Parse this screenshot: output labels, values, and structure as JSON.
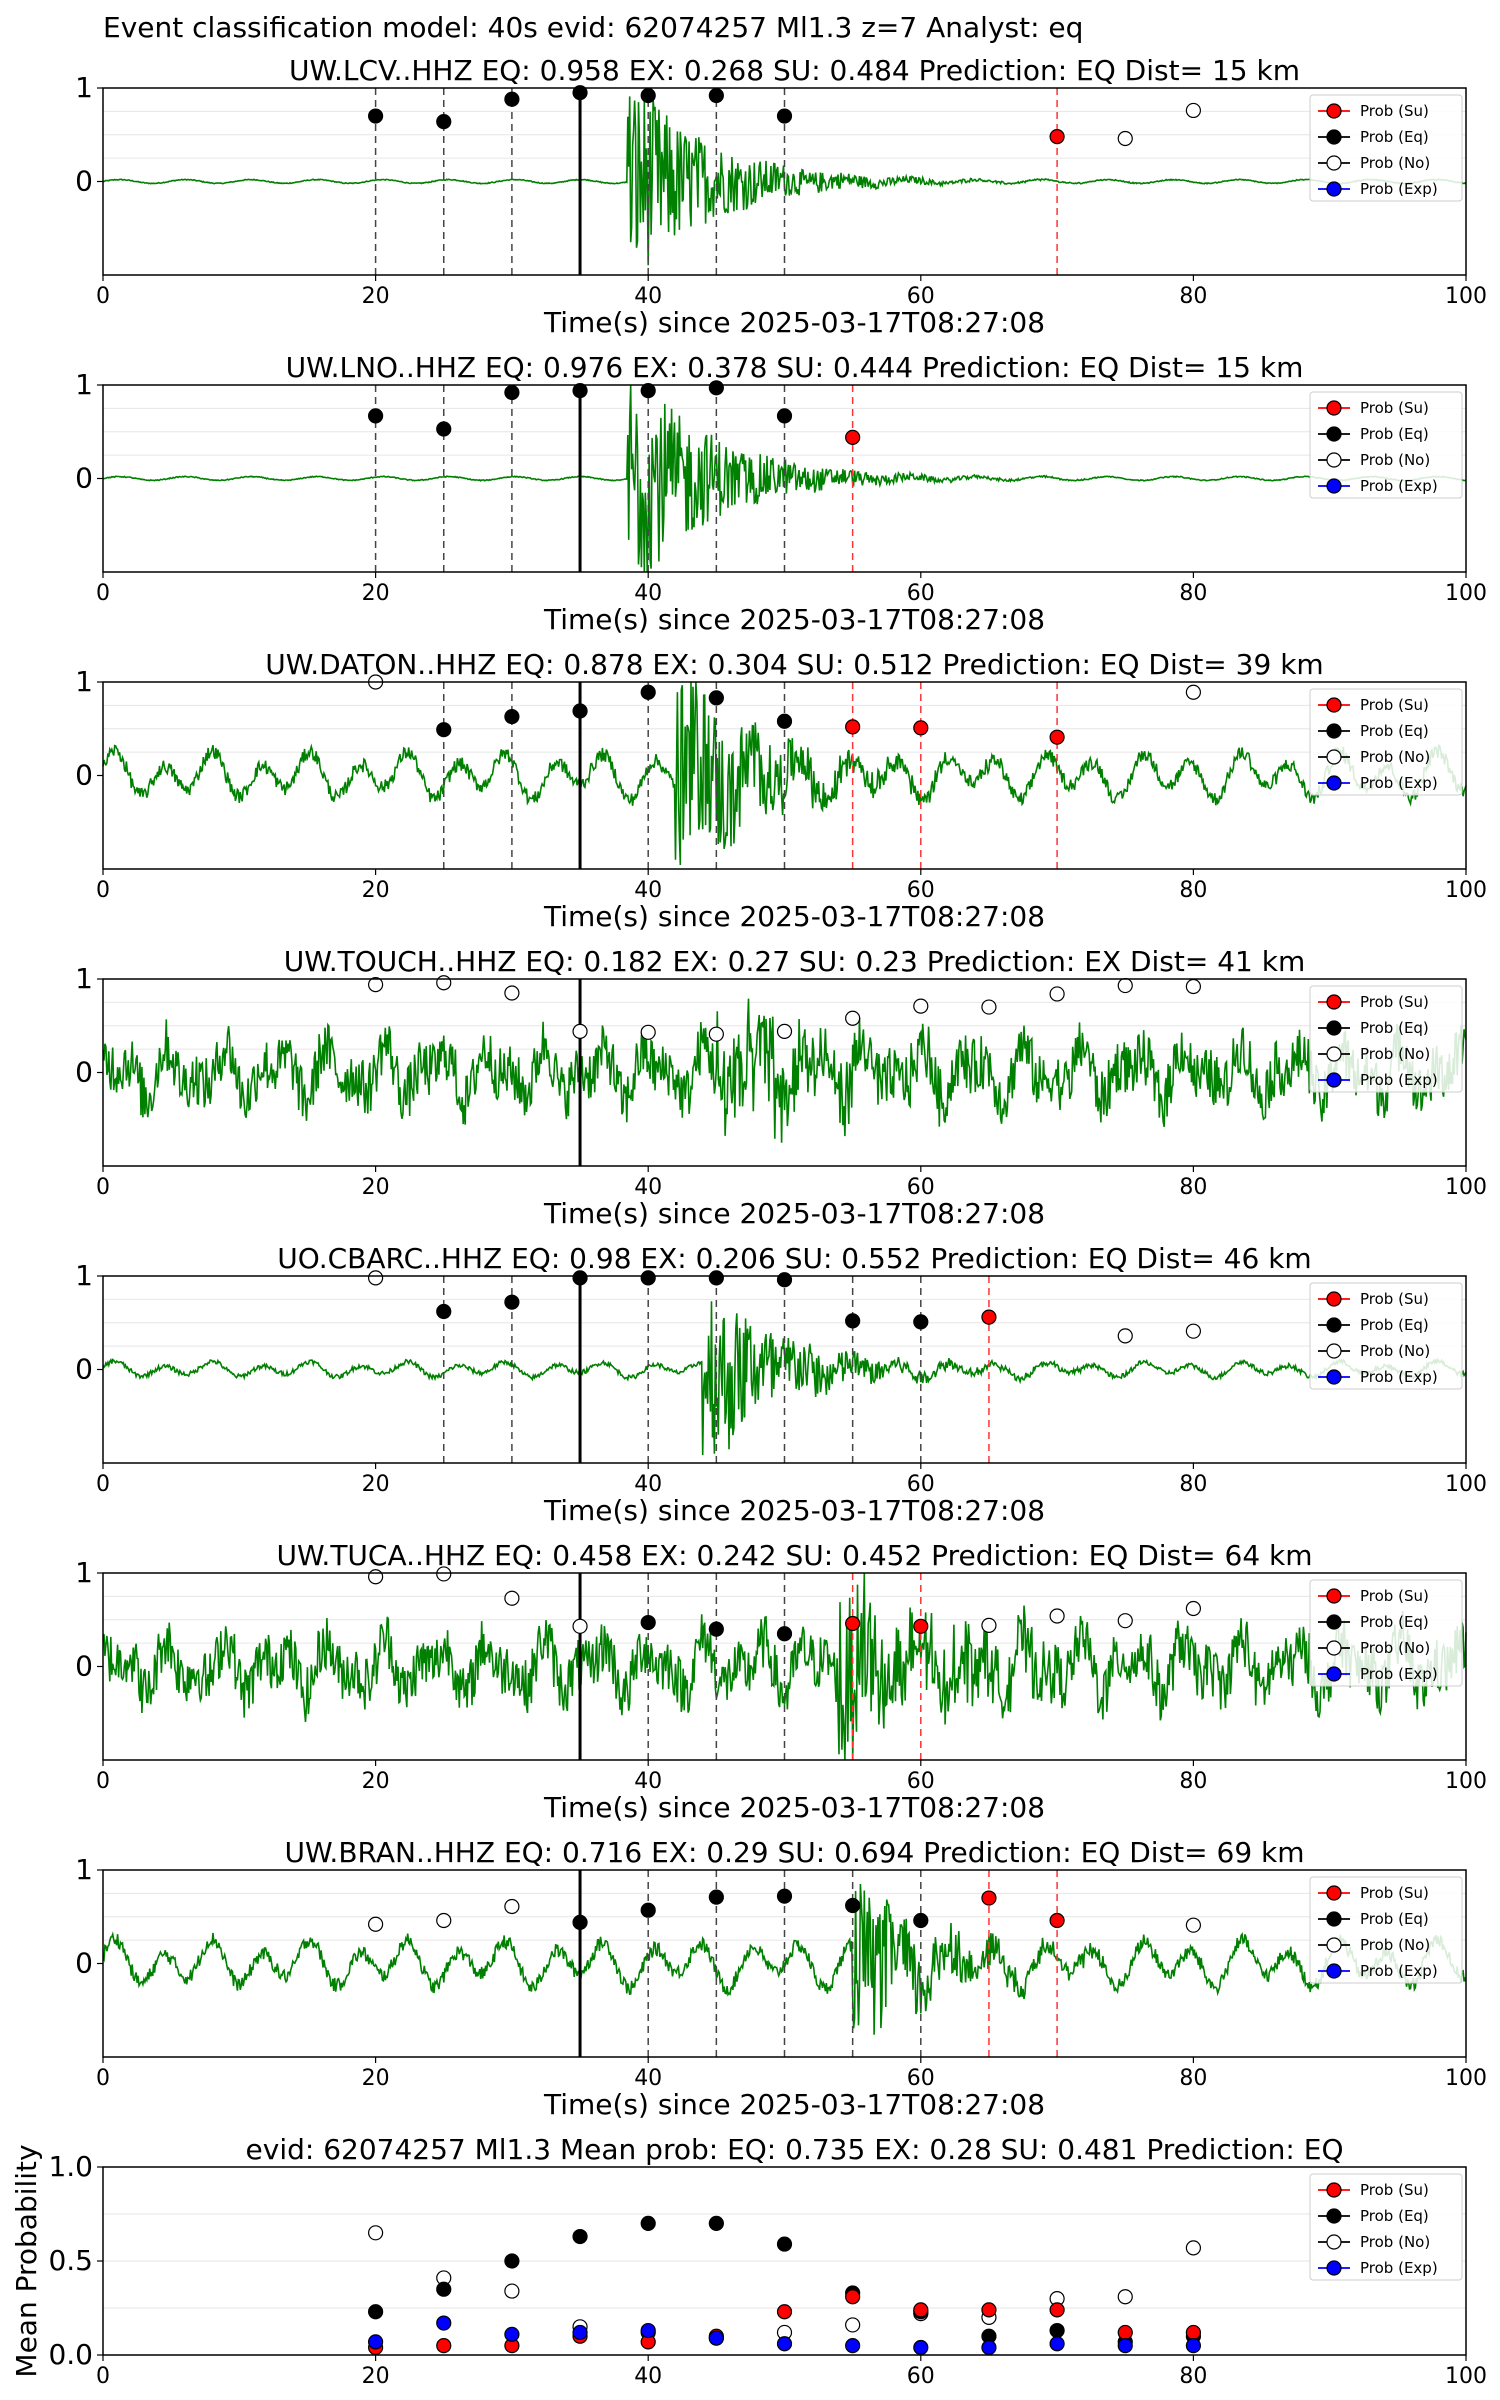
{
  "figure": {
    "suptitle": "Event classification model: 40s evid: 62074257 Ml1.3 z=7 Analyst: eq"
  },
  "legend_labels": [
    "Prob (Su)",
    "Prob (Eq)",
    "Prob (No)",
    "Prob (Exp)"
  ],
  "colors": {
    "waveform": "#008000",
    "eq": "#000000",
    "su": "#ff0000",
    "no": "#ffffff",
    "exp": "#0000ff",
    "dashed_black": "#444444",
    "dashed_red": "#ff3333",
    "origin_line": "#000000"
  },
  "chart_data": [
    {
      "type": "line",
      "title": "UW.LCV..HHZ   EQ: 0.958  EX: 0.268  SU: 0.484   Prediction: EQ    Dist= 15 km",
      "xlabel": "Time(s) since 2025-03-17T08:27:08",
      "xlim": [
        0,
        100
      ],
      "ylim": [
        -1,
        1
      ],
      "xticks": [
        "0",
        "20",
        "40",
        "60",
        "80",
        "100"
      ],
      "yticks": [
        "0",
        "1"
      ],
      "origin_time": 35,
      "arrival_time": 38.5,
      "waveform_style": "local",
      "noise_level": 0.02,
      "event_amplitude": 1.0,
      "eq_points": [
        [
          20,
          0.7
        ],
        [
          25,
          0.64
        ],
        [
          30,
          0.88
        ],
        [
          35,
          0.95
        ],
        [
          40,
          0.92
        ],
        [
          45,
          0.92
        ],
        [
          50,
          0.7
        ]
      ],
      "su_points": [
        [
          70,
          0.48
        ]
      ],
      "no_points": [
        [
          75,
          0.46
        ],
        [
          80,
          0.76
        ]
      ],
      "exp_points": [],
      "black_dashed": [
        20,
        25,
        30,
        40,
        45,
        50
      ],
      "red_dashed": [
        70
      ]
    },
    {
      "type": "line",
      "title": "UW.LNO..HHZ   EQ: 0.976  EX: 0.378  SU: 0.444   Prediction: EQ    Dist= 15 km",
      "xlabel": "Time(s) since 2025-03-17T08:27:08",
      "xlim": [
        0,
        100
      ],
      "ylim": [
        -1,
        1
      ],
      "xticks": [
        "0",
        "20",
        "40",
        "60",
        "80",
        "100"
      ],
      "yticks": [
        "0",
        "1"
      ],
      "origin_time": 35,
      "arrival_time": 38.5,
      "waveform_style": "local",
      "noise_level": 0.02,
      "event_amplitude": 1.1,
      "eq_points": [
        [
          20,
          0.67
        ],
        [
          25,
          0.53
        ],
        [
          30,
          0.92
        ],
        [
          35,
          0.94
        ],
        [
          40,
          0.94
        ],
        [
          45,
          0.97
        ],
        [
          50,
          0.67
        ]
      ],
      "su_points": [
        [
          55,
          0.44
        ]
      ],
      "no_points": [],
      "exp_points": [],
      "black_dashed": [
        20,
        25,
        30,
        40,
        45,
        50
      ],
      "red_dashed": [
        55
      ]
    },
    {
      "type": "line",
      "title": "UW.DATON..HHZ   EQ: 0.878  EX: 0.304  SU: 0.512   Prediction: EQ    Dist= 39 km",
      "xlabel": "Time(s) since 2025-03-17T08:27:08",
      "xlim": [
        0,
        100
      ],
      "ylim": [
        -1,
        1
      ],
      "xticks": [
        "0",
        "20",
        "40",
        "60",
        "80",
        "100"
      ],
      "yticks": [
        "0",
        "1"
      ],
      "origin_time": 35,
      "arrival_time": 42,
      "waveform_style": "microseism",
      "noise_level": 0.3,
      "event_amplitude": 1.0,
      "eq_points": [
        [
          25,
          0.49
        ],
        [
          30,
          0.63
        ],
        [
          35,
          0.69
        ],
        [
          40,
          0.89
        ],
        [
          45,
          0.83
        ],
        [
          50,
          0.58
        ]
      ],
      "su_points": [
        [
          55,
          0.52
        ],
        [
          60,
          0.51
        ],
        [
          70,
          0.41
        ]
      ],
      "no_points": [
        [
          20,
          1.0
        ],
        [
          80,
          0.89
        ]
      ],
      "exp_points": [],
      "black_dashed": [
        25,
        30,
        40,
        45,
        50
      ],
      "red_dashed": [
        55,
        60,
        70
      ]
    },
    {
      "type": "line",
      "title": "UW.TOUCH..HHZ   EQ: 0.182  EX: 0.27  SU: 0.23   Prediction: EX    Dist= 41 km",
      "xlabel": "Time(s) since 2025-03-17T08:27:08",
      "xlim": [
        0,
        100
      ],
      "ylim": [
        -1,
        1
      ],
      "xticks": [
        "0",
        "20",
        "40",
        "60",
        "80",
        "100"
      ],
      "yticks": [
        "0",
        "1"
      ],
      "origin_time": 35,
      "arrival_time": 45,
      "waveform_style": "noisy",
      "noise_level": 0.45,
      "event_amplitude": 0.7,
      "eq_points": [],
      "su_points": [],
      "no_points": [
        [
          20,
          0.94
        ],
        [
          25,
          0.96
        ],
        [
          30,
          0.85
        ],
        [
          35,
          0.44
        ],
        [
          40,
          0.43
        ],
        [
          45,
          0.41
        ],
        [
          50,
          0.44
        ],
        [
          55,
          0.58
        ],
        [
          60,
          0.71
        ],
        [
          65,
          0.7
        ],
        [
          70,
          0.84
        ],
        [
          75,
          0.93
        ],
        [
          80,
          0.92
        ]
      ],
      "exp_points": [],
      "black_dashed": [],
      "red_dashed": []
    },
    {
      "type": "line",
      "title": "UO.CBARC..HHZ   EQ: 0.98  EX: 0.206  SU: 0.552   Prediction: EQ    Dist= 46 km",
      "xlabel": "Time(s) since 2025-03-17T08:27:08",
      "xlim": [
        0,
        100
      ],
      "ylim": [
        -1,
        1
      ],
      "xticks": [
        "0",
        "20",
        "40",
        "60",
        "80",
        "100"
      ],
      "yticks": [
        "0",
        "1"
      ],
      "origin_time": 35,
      "arrival_time": 44,
      "waveform_style": "microseism",
      "noise_level": 0.1,
      "event_amplitude": 0.9,
      "eq_points": [
        [
          25,
          0.62
        ],
        [
          30,
          0.72
        ],
        [
          35,
          0.98
        ],
        [
          40,
          0.98
        ],
        [
          45,
          0.98
        ],
        [
          50,
          0.96
        ],
        [
          55,
          0.52
        ],
        [
          60,
          0.51
        ]
      ],
      "su_points": [
        [
          65,
          0.56
        ]
      ],
      "no_points": [
        [
          20,
          0.98
        ],
        [
          75,
          0.36
        ],
        [
          80,
          0.41
        ]
      ],
      "exp_points": [],
      "black_dashed": [
        25,
        30,
        40,
        45,
        50,
        55,
        60
      ],
      "red_dashed": [
        65
      ]
    },
    {
      "type": "line",
      "title": "UW.TUCA..HHZ   EQ: 0.458  EX: 0.242  SU: 0.452   Prediction: EQ    Dist= 64 km",
      "xlabel": "Time(s) since 2025-03-17T08:27:08",
      "xlim": [
        0,
        100
      ],
      "ylim": [
        -1,
        1
      ],
      "xticks": [
        "0",
        "20",
        "40",
        "60",
        "80",
        "100"
      ],
      "yticks": [
        "0",
        "1"
      ],
      "origin_time": 35,
      "arrival_time": 54,
      "waveform_style": "noisy",
      "noise_level": 0.45,
      "event_amplitude": 0.9,
      "eq_points": [
        [
          40,
          0.47
        ],
        [
          45,
          0.4
        ],
        [
          50,
          0.35
        ]
      ],
      "su_points": [
        [
          55,
          0.46
        ],
        [
          60,
          0.43
        ]
      ],
      "no_points": [
        [
          20,
          0.96
        ],
        [
          25,
          0.99
        ],
        [
          30,
          0.73
        ],
        [
          35,
          0.43
        ],
        [
          65,
          0.44
        ],
        [
          70,
          0.54
        ],
        [
          75,
          0.49
        ],
        [
          80,
          0.62
        ]
      ],
      "exp_points": [],
      "black_dashed": [
        40,
        45,
        50
      ],
      "red_dashed": [
        55,
        60
      ]
    },
    {
      "type": "line",
      "title": "UW.BRAN..HHZ   EQ: 0.716  EX: 0.29  SU: 0.694   Prediction: EQ    Dist= 69 km",
      "xlabel": "Time(s) since 2025-03-17T08:27:08",
      "xlim": [
        0,
        100
      ],
      "ylim": [
        -1,
        1
      ],
      "xticks": [
        "0",
        "20",
        "40",
        "60",
        "80",
        "100"
      ],
      "yticks": [
        "0",
        "1"
      ],
      "origin_time": 35,
      "arrival_time": 55,
      "waveform_style": "microseism",
      "noise_level": 0.3,
      "event_amplitude": 0.75,
      "eq_points": [
        [
          35,
          0.44
        ],
        [
          40,
          0.57
        ],
        [
          45,
          0.71
        ],
        [
          50,
          0.72
        ],
        [
          55,
          0.62
        ],
        [
          60,
          0.46
        ]
      ],
      "su_points": [
        [
          65,
          0.7
        ],
        [
          70,
          0.46
        ]
      ],
      "no_points": [
        [
          20,
          0.42
        ],
        [
          25,
          0.46
        ],
        [
          30,
          0.61
        ],
        [
          80,
          0.41
        ]
      ],
      "exp_points": [],
      "black_dashed": [
        40,
        45,
        50,
        55,
        60
      ],
      "red_dashed": [
        65,
        70
      ]
    },
    {
      "type": "scatter",
      "title": "evid: 62074257  Ml1.3   Mean prob:   EQ: 0.735  EX: 0.28  SU: 0.481   Prediction: EQ",
      "ylabel": "Mean Probability",
      "xlim": [
        0,
        100
      ],
      "ylim": [
        0,
        1
      ],
      "xticks": [
        "0",
        "20",
        "40",
        "60",
        "80",
        "100"
      ],
      "yticks": [
        "0.0",
        "0.5",
        "1.0"
      ],
      "series": [
        {
          "name": "Prob (Su)",
          "points": [
            [
              20,
              0.04
            ],
            [
              25,
              0.05
            ],
            [
              30,
              0.05
            ],
            [
              35,
              0.1
            ],
            [
              40,
              0.07
            ],
            [
              45,
              0.1
            ],
            [
              50,
              0.23
            ],
            [
              55,
              0.31
            ],
            [
              60,
              0.24
            ],
            [
              65,
              0.24
            ],
            [
              70,
              0.24
            ],
            [
              75,
              0.12
            ],
            [
              80,
              0.12
            ]
          ]
        },
        {
          "name": "Prob (Eq)",
          "points": [
            [
              20,
              0.23
            ],
            [
              25,
              0.35
            ],
            [
              30,
              0.5
            ],
            [
              35,
              0.63
            ],
            [
              40,
              0.7
            ],
            [
              45,
              0.7
            ],
            [
              50,
              0.59
            ],
            [
              55,
              0.33
            ],
            [
              60,
              0.23
            ],
            [
              65,
              0.1
            ],
            [
              70,
              0.13
            ],
            [
              75,
              0.07
            ],
            [
              80,
              0.1
            ]
          ]
        },
        {
          "name": "Prob (No)",
          "points": [
            [
              20,
              0.65
            ],
            [
              25,
              0.41
            ],
            [
              30,
              0.34
            ],
            [
              35,
              0.15
            ],
            [
              40,
              0.12
            ],
            [
              45,
              0.09
            ],
            [
              50,
              0.12
            ],
            [
              55,
              0.16
            ],
            [
              60,
              0.22
            ],
            [
              65,
              0.2
            ],
            [
              70,
              0.3
            ],
            [
              75,
              0.31
            ],
            [
              80,
              0.57
            ]
          ]
        },
        {
          "name": "Prob (Exp)",
          "points": [
            [
              20,
              0.07
            ],
            [
              25,
              0.17
            ],
            [
              30,
              0.11
            ],
            [
              35,
              0.12
            ],
            [
              40,
              0.13
            ],
            [
              45,
              0.09
            ],
            [
              50,
              0.06
            ],
            [
              55,
              0.05
            ],
            [
              60,
              0.04
            ],
            [
              65,
              0.04
            ],
            [
              70,
              0.06
            ],
            [
              75,
              0.05
            ],
            [
              80,
              0.05
            ]
          ]
        }
      ]
    }
  ]
}
